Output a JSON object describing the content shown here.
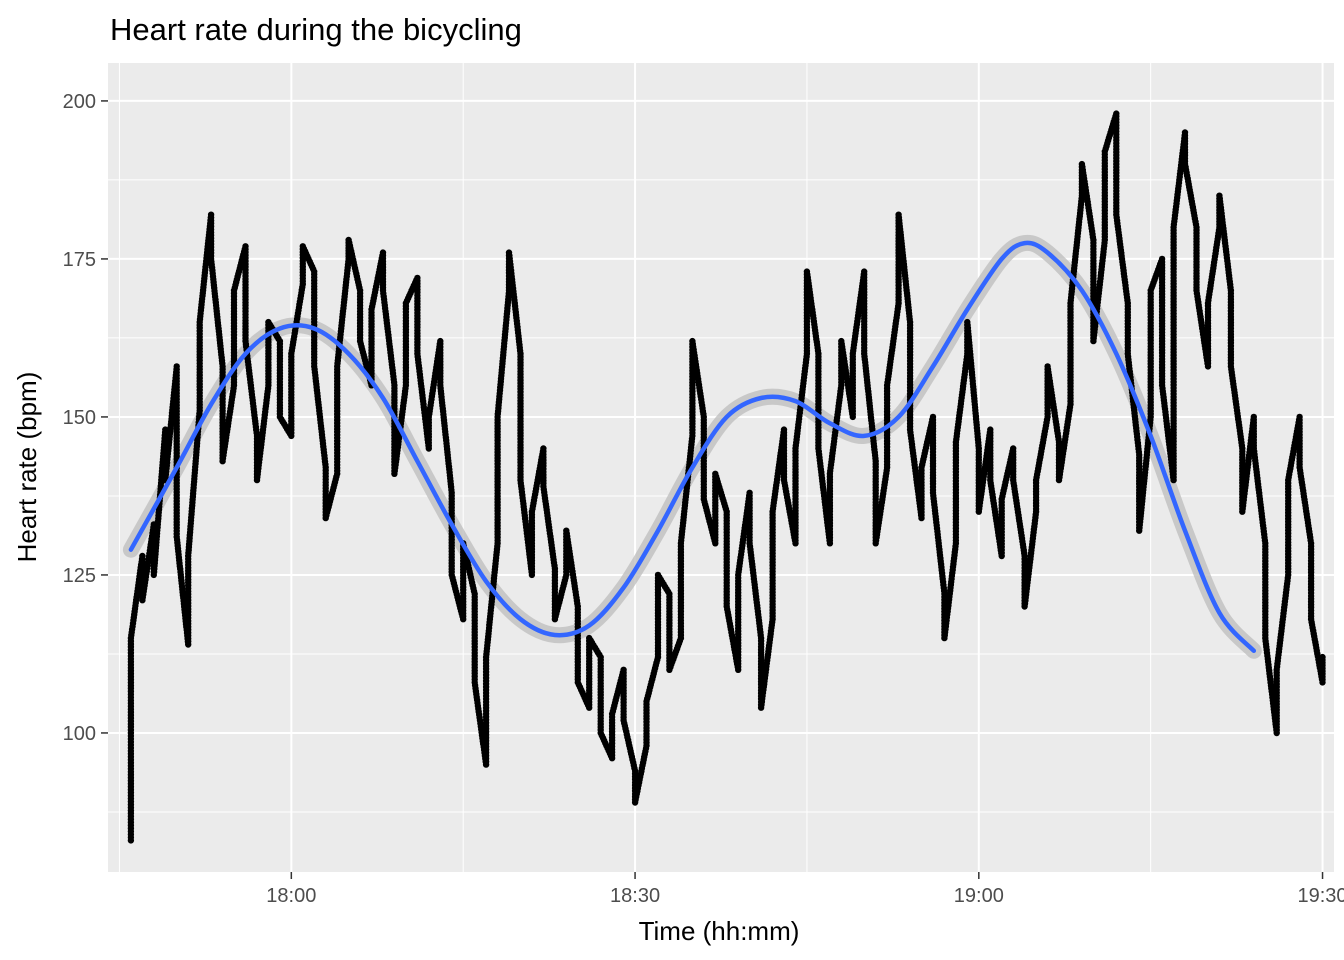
{
  "chart_data": {
    "type": "scatter",
    "title": "Heart rate during the bicycling",
    "xlabel": "Time (hh:mm)",
    "ylabel": "Heart rate (bpm)",
    "x_unit": "hh:mm",
    "xlim": [
      "17:44",
      "19:31"
    ],
    "ylim": [
      78,
      206
    ],
    "x_ticks": [
      "18:00",
      "18:30",
      "19:00",
      "19:30"
    ],
    "y_ticks": [
      100,
      125,
      150,
      175,
      200
    ],
    "grid": true,
    "legend": "none",
    "colors": {
      "panel": "#ebebeb",
      "grid": "#ffffff",
      "points": "#000000",
      "smooth": "#3366ff",
      "ribbon": "#bfbfbf"
    },
    "series": [
      {
        "kind": "points",
        "points": [
          [
            "17:46",
            83
          ],
          [
            "17:46",
            100
          ],
          [
            "17:46",
            115
          ],
          [
            "17:47",
            128
          ],
          [
            "17:47",
            121
          ],
          [
            "17:48",
            133
          ],
          [
            "17:48",
            125
          ],
          [
            "17:49",
            148
          ],
          [
            "17:49",
            140
          ],
          [
            "17:50",
            158
          ],
          [
            "17:50",
            131
          ],
          [
            "17:51",
            114
          ],
          [
            "17:51",
            128
          ],
          [
            "17:52",
            151
          ],
          [
            "17:52",
            165
          ],
          [
            "17:53",
            182
          ],
          [
            "17:53",
            175
          ],
          [
            "17:54",
            158
          ],
          [
            "17:54",
            143
          ],
          [
            "17:55",
            155
          ],
          [
            "17:55",
            170
          ],
          [
            "17:56",
            177
          ],
          [
            "17:56",
            162
          ],
          [
            "17:57",
            147
          ],
          [
            "17:57",
            140
          ],
          [
            "17:58",
            155
          ],
          [
            "17:58",
            165
          ],
          [
            "17:59",
            162
          ],
          [
            "17:59",
            150
          ],
          [
            "18:00",
            147
          ],
          [
            "18:00",
            160
          ],
          [
            "18:01",
            171
          ],
          [
            "18:01",
            177
          ],
          [
            "18:02",
            173
          ],
          [
            "18:02",
            158
          ],
          [
            "18:03",
            142
          ],
          [
            "18:03",
            134
          ],
          [
            "18:04",
            141
          ],
          [
            "18:04",
            158
          ],
          [
            "18:05",
            175
          ],
          [
            "18:05",
            178
          ],
          [
            "18:06",
            170
          ],
          [
            "18:06",
            162
          ],
          [
            "18:07",
            155
          ],
          [
            "18:07",
            167
          ],
          [
            "18:08",
            176
          ],
          [
            "18:08",
            170
          ],
          [
            "18:09",
            155
          ],
          [
            "18:09",
            141
          ],
          [
            "18:10",
            155
          ],
          [
            "18:10",
            168
          ],
          [
            "18:11",
            172
          ],
          [
            "18:11",
            160
          ],
          [
            "18:12",
            145
          ],
          [
            "18:12",
            150
          ],
          [
            "18:13",
            162
          ],
          [
            "18:13",
            155
          ],
          [
            "18:14",
            138
          ],
          [
            "18:14",
            125
          ],
          [
            "18:15",
            118
          ],
          [
            "18:15",
            130
          ],
          [
            "18:16",
            122
          ],
          [
            "18:16",
            108
          ],
          [
            "18:17",
            95
          ],
          [
            "18:17",
            112
          ],
          [
            "18:18",
            130
          ],
          [
            "18:18",
            150
          ],
          [
            "18:19",
            170
          ],
          [
            "18:19",
            176
          ],
          [
            "18:20",
            160
          ],
          [
            "18:20",
            140
          ],
          [
            "18:21",
            125
          ],
          [
            "18:21",
            135
          ],
          [
            "18:22",
            145
          ],
          [
            "18:22",
            139
          ],
          [
            "18:23",
            126
          ],
          [
            "18:23",
            118
          ],
          [
            "18:24",
            125
          ],
          [
            "18:24",
            132
          ],
          [
            "18:25",
            120
          ],
          [
            "18:25",
            108
          ],
          [
            "18:26",
            104
          ],
          [
            "18:26",
            115
          ],
          [
            "18:27",
            112
          ],
          [
            "18:27",
            100
          ],
          [
            "18:28",
            96
          ],
          [
            "18:28",
            103
          ],
          [
            "18:29",
            110
          ],
          [
            "18:29",
            102
          ],
          [
            "18:30",
            94
          ],
          [
            "18:30",
            89
          ],
          [
            "18:31",
            98
          ],
          [
            "18:31",
            105
          ],
          [
            "18:32",
            112
          ],
          [
            "18:32",
            125
          ],
          [
            "18:33",
            122
          ],
          [
            "18:33",
            110
          ],
          [
            "18:34",
            115
          ],
          [
            "18:34",
            130
          ],
          [
            "18:35",
            147
          ],
          [
            "18:35",
            162
          ],
          [
            "18:36",
            150
          ],
          [
            "18:36",
            137
          ],
          [
            "18:37",
            130
          ],
          [
            "18:37",
            141
          ],
          [
            "18:38",
            135
          ],
          [
            "18:38",
            120
          ],
          [
            "18:39",
            110
          ],
          [
            "18:39",
            125
          ],
          [
            "18:40",
            138
          ],
          [
            "18:40",
            130
          ],
          [
            "18:41",
            115
          ],
          [
            "18:41",
            104
          ],
          [
            "18:42",
            118
          ],
          [
            "18:42",
            135
          ],
          [
            "18:43",
            148
          ],
          [
            "18:43",
            140
          ],
          [
            "18:44",
            130
          ],
          [
            "18:44",
            145
          ],
          [
            "18:45",
            160
          ],
          [
            "18:45",
            173
          ],
          [
            "18:46",
            160
          ],
          [
            "18:46",
            145
          ],
          [
            "18:47",
            130
          ],
          [
            "18:47",
            141
          ],
          [
            "18:48",
            155
          ],
          [
            "18:48",
            162
          ],
          [
            "18:49",
            150
          ],
          [
            "18:49",
            160
          ],
          [
            "18:50",
            173
          ],
          [
            "18:50",
            160
          ],
          [
            "18:51",
            143
          ],
          [
            "18:51",
            130
          ],
          [
            "18:52",
            142
          ],
          [
            "18:52",
            155
          ],
          [
            "18:53",
            168
          ],
          [
            "18:53",
            182
          ],
          [
            "18:54",
            165
          ],
          [
            "18:54",
            148
          ],
          [
            "18:55",
            134
          ],
          [
            "18:55",
            142
          ],
          [
            "18:56",
            150
          ],
          [
            "18:56",
            138
          ],
          [
            "18:57",
            122
          ],
          [
            "18:57",
            115
          ],
          [
            "18:58",
            130
          ],
          [
            "18:58",
            146
          ],
          [
            "18:59",
            160
          ],
          [
            "18:59",
            165
          ],
          [
            "19:00",
            145
          ],
          [
            "19:00",
            135
          ],
          [
            "19:01",
            148
          ],
          [
            "19:01",
            140
          ],
          [
            "19:02",
            128
          ],
          [
            "19:02",
            137
          ],
          [
            "19:03",
            145
          ],
          [
            "19:03",
            140
          ],
          [
            "19:04",
            128
          ],
          [
            "19:04",
            120
          ],
          [
            "19:05",
            135
          ],
          [
            "19:05",
            140
          ],
          [
            "19:06",
            150
          ],
          [
            "19:06",
            158
          ],
          [
            "19:07",
            146
          ],
          [
            "19:07",
            140
          ],
          [
            "19:08",
            152
          ],
          [
            "19:08",
            168
          ],
          [
            "19:09",
            185
          ],
          [
            "19:09",
            190
          ],
          [
            "19:10",
            178
          ],
          [
            "19:10",
            162
          ],
          [
            "19:11",
            178
          ],
          [
            "19:11",
            192
          ],
          [
            "19:12",
            198
          ],
          [
            "19:12",
            182
          ],
          [
            "19:13",
            168
          ],
          [
            "19:13",
            160
          ],
          [
            "19:14",
            144
          ],
          [
            "19:14",
            132
          ],
          [
            "19:15",
            150
          ],
          [
            "19:15",
            170
          ],
          [
            "19:16",
            175
          ],
          [
            "19:16",
            155
          ],
          [
            "19:17",
            140
          ],
          [
            "19:17",
            180
          ],
          [
            "19:18",
            195
          ],
          [
            "19:18",
            190
          ],
          [
            "19:19",
            180
          ],
          [
            "19:19",
            170
          ],
          [
            "19:20",
            158
          ],
          [
            "19:20",
            168
          ],
          [
            "19:21",
            180
          ],
          [
            "19:21",
            185
          ],
          [
            "19:22",
            170
          ],
          [
            "19:22",
            158
          ],
          [
            "19:23",
            145
          ],
          [
            "19:23",
            135
          ],
          [
            "19:24",
            150
          ],
          [
            "19:24",
            145
          ],
          [
            "19:25",
            130
          ],
          [
            "19:25",
            115
          ],
          [
            "19:26",
            100
          ],
          [
            "19:26",
            110
          ],
          [
            "19:27",
            125
          ],
          [
            "19:27",
            140
          ],
          [
            "19:28",
            150
          ],
          [
            "19:28",
            142
          ],
          [
            "19:29",
            130
          ],
          [
            "19:29",
            118
          ],
          [
            "19:30",
            108
          ],
          [
            "19:30",
            112
          ]
        ]
      },
      {
        "kind": "smooth",
        "points": [
          [
            "17:46",
            129
          ],
          [
            "17:50",
            142
          ],
          [
            "17:53",
            152
          ],
          [
            "17:56",
            160
          ],
          [
            "17:59",
            164
          ],
          [
            "18:02",
            164
          ],
          [
            "18:05",
            160
          ],
          [
            "18:08",
            153
          ],
          [
            "18:11",
            143
          ],
          [
            "18:14",
            133
          ],
          [
            "18:17",
            124
          ],
          [
            "18:20",
            118
          ],
          [
            "18:23",
            115.5
          ],
          [
            "18:26",
            117
          ],
          [
            "18:29",
            123
          ],
          [
            "18:32",
            132
          ],
          [
            "18:35",
            142
          ],
          [
            "18:38",
            150
          ],
          [
            "18:41",
            153
          ],
          [
            "18:44",
            152.5
          ],
          [
            "18:47",
            149
          ],
          [
            "18:50",
            147
          ],
          [
            "18:53",
            150
          ],
          [
            "18:56",
            158
          ],
          [
            "18:59",
            167
          ],
          [
            "19:02",
            175
          ],
          [
            "19:04",
            177.5
          ],
          [
            "19:06",
            176
          ],
          [
            "19:09",
            170
          ],
          [
            "19:12",
            160
          ],
          [
            "19:15",
            147
          ],
          [
            "19:18",
            132
          ],
          [
            "19:21",
            119
          ],
          [
            "19:24",
            113
          ]
        ]
      }
    ]
  }
}
